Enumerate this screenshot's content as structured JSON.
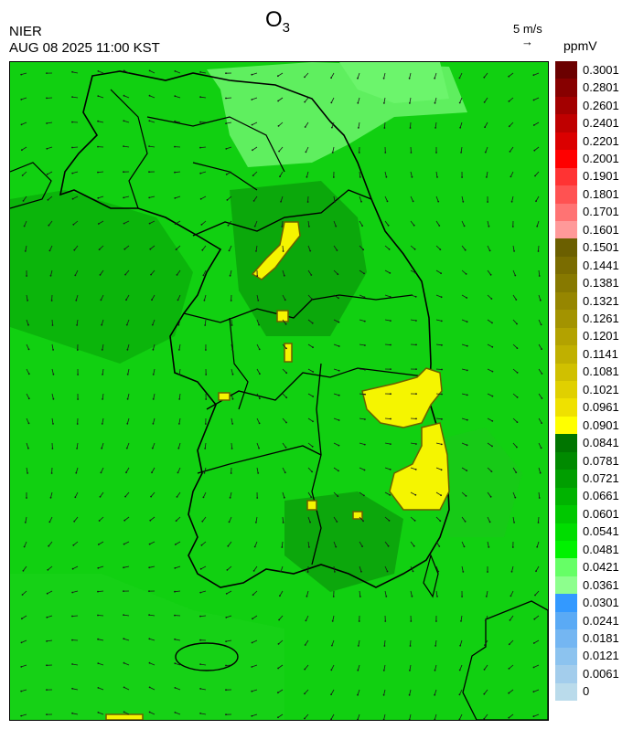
{
  "header": {
    "agency": "NIER",
    "timestamp": "AUG 08 2025 11:00 KST",
    "species": "O",
    "species_subscript": "3",
    "wind_reference": "5 m/s",
    "wind_arrow": "→",
    "unit": "ppmV"
  },
  "map": {
    "variable": "O3",
    "region": "Korean Peninsula",
    "background_color": "#11d011",
    "coastline_color": "#000000",
    "district_line_color": "#c8c8c8"
  },
  "legend": {
    "bins": [
      {
        "label": "0.3001",
        "color": "#6b0000"
      },
      {
        "label": "0.2801",
        "color": "#870000"
      },
      {
        "label": "0.2601",
        "color": "#a30000"
      },
      {
        "label": "0.2401",
        "color": "#bf0000"
      },
      {
        "label": "0.2201",
        "color": "#db0000"
      },
      {
        "label": "0.2001",
        "color": "#ff0000"
      },
      {
        "label": "0.1901",
        "color": "#ff3333"
      },
      {
        "label": "0.1801",
        "color": "#ff5252"
      },
      {
        "label": "0.1701",
        "color": "#ff7373"
      },
      {
        "label": "0.1601",
        "color": "#ff9999"
      },
      {
        "label": "0.1501",
        "color": "#6b5f00"
      },
      {
        "label": "0.1441",
        "color": "#7a6c00"
      },
      {
        "label": "0.1381",
        "color": "#877900"
      },
      {
        "label": "0.1321",
        "color": "#968600"
      },
      {
        "label": "0.1261",
        "color": "#a39300"
      },
      {
        "label": "0.1201",
        "color": "#b3a200"
      },
      {
        "label": "0.1141",
        "color": "#c0b000"
      },
      {
        "label": "0.1081",
        "color": "#d0c000"
      },
      {
        "label": "0.1021",
        "color": "#e0d000"
      },
      {
        "label": "0.0961",
        "color": "#efe100"
      },
      {
        "label": "0.0901",
        "color": "#ffff00"
      },
      {
        "label": "0.0841",
        "color": "#007500"
      },
      {
        "label": "0.0781",
        "color": "#008a00"
      },
      {
        "label": "0.0721",
        "color": "#009e00"
      },
      {
        "label": "0.0661",
        "color": "#00b300"
      },
      {
        "label": "0.0601",
        "color": "#00c800"
      },
      {
        "label": "0.0541",
        "color": "#00dd00"
      },
      {
        "label": "0.0481",
        "color": "#00f200"
      },
      {
        "label": "0.0421",
        "color": "#66ff66"
      },
      {
        "label": "0.0361",
        "color": "#8dff8d"
      },
      {
        "label": "0.0301",
        "color": "#3399ff"
      },
      {
        "label": "0.0241",
        "color": "#5aaaf5"
      },
      {
        "label": "0.0181",
        "color": "#74b6f2"
      },
      {
        "label": "0.0121",
        "color": "#8cc3ef"
      },
      {
        "label": "0.0061",
        "color": "#a3cdec"
      },
      {
        "label": "0",
        "color": "#badbeb"
      }
    ]
  }
}
